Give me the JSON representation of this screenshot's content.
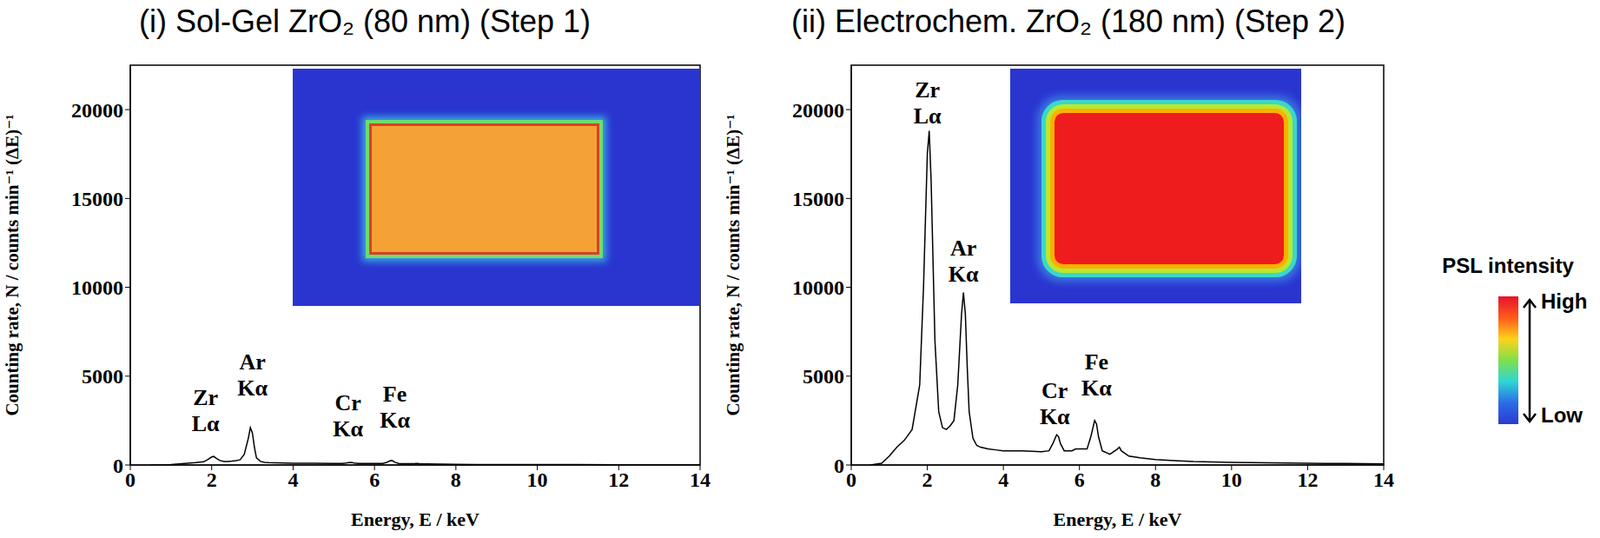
{
  "chart_data": [
    {
      "type": "line",
      "title": "(i) Sol-Gel ZrO₂ (80 nm) (Step 1)",
      "x_label": "Energy, E / keV",
      "y_label": "Counting rate, N / counts min⁻¹ (ΔE)⁻¹",
      "x": [
        0.5,
        0.8,
        1.0,
        1.2,
        1.4,
        1.6,
        1.8,
        1.9,
        2.0,
        2.05,
        2.1,
        2.2,
        2.3,
        2.4,
        2.5,
        2.6,
        2.7,
        2.8,
        2.9,
        2.95,
        3.0,
        3.05,
        3.1,
        3.2,
        3.3,
        3.4,
        3.6,
        3.8,
        4.0,
        4.5,
        5.0,
        5.2,
        5.3,
        5.4,
        5.45,
        5.5,
        5.6,
        5.8,
        5.9,
        6.0,
        6.2,
        6.3,
        6.4,
        6.45,
        6.5,
        6.6,
        6.8,
        7.0,
        7.05,
        7.1,
        7.3,
        7.6,
        8.0,
        8.5,
        9.0,
        10,
        11,
        12,
        13,
        14
      ],
      "values": [
        0,
        0,
        20,
        60,
        100,
        130,
        180,
        300,
        450,
        480,
        400,
        250,
        200,
        200,
        220,
        250,
        300,
        600,
        1500,
        2100,
        1800,
        1000,
        400,
        200,
        150,
        130,
        120,
        110,
        100,
        100,
        90,
        90,
        110,
        150,
        140,
        110,
        90,
        80,
        90,
        90,
        90,
        150,
        250,
        230,
        150,
        90,
        70,
        80,
        90,
        70,
        60,
        50,
        40,
        30,
        30,
        20,
        20,
        10,
        10,
        10
      ],
      "color": "#000000",
      "xlim": [
        0,
        14
      ],
      "xticks": [
        0,
        2,
        4,
        6,
        8,
        10,
        12,
        14
      ],
      "ylim": [
        0,
        22500
      ],
      "yticks": [
        0,
        5000,
        10000,
        15000,
        20000
      ],
      "grid": false,
      "annotations": [
        {
          "text": "Zr Lα",
          "x": 1.85,
          "y": 1900
        },
        {
          "text": "Ar Kα",
          "x": 3.0,
          "y": 3900
        },
        {
          "text": "Cr Kα",
          "x": 5.35,
          "y": 1600
        },
        {
          "text": "Fe Kα",
          "x": 6.5,
          "y": 2100
        }
      ]
    },
    {
      "type": "line",
      "title": "(ii) Electrochem. ZrO₂ (180 nm) (Step 2)",
      "x_label": "Energy, E / keV",
      "y_label": "Counting rate, N / counts min⁻¹ (ΔE)⁻¹",
      "x": [
        0.5,
        0.8,
        1.0,
        1.2,
        1.4,
        1.6,
        1.8,
        1.9,
        2.0,
        2.05,
        2.1,
        2.2,
        2.3,
        2.4,
        2.5,
        2.6,
        2.7,
        2.8,
        2.9,
        2.95,
        3.0,
        3.05,
        3.1,
        3.2,
        3.3,
        3.4,
        3.6,
        3.8,
        4.0,
        4.5,
        5.0,
        5.2,
        5.3,
        5.4,
        5.45,
        5.5,
        5.6,
        5.8,
        5.9,
        6.0,
        6.2,
        6.3,
        6.4,
        6.45,
        6.5,
        6.6,
        6.8,
        7.0,
        7.05,
        7.1,
        7.3,
        7.6,
        8.0,
        8.5,
        9.0,
        10,
        11,
        12,
        13,
        14
      ],
      "values": [
        0,
        100,
        500,
        1000,
        1400,
        2000,
        4500,
        10000,
        17500,
        18800,
        16000,
        7000,
        3000,
        2100,
        2000,
        2200,
        2500,
        4500,
        8500,
        9700,
        8500,
        5500,
        3000,
        1500,
        1100,
        1000,
        900,
        850,
        800,
        800,
        750,
        800,
        1200,
        1700,
        1600,
        1200,
        800,
        800,
        900,
        900,
        900,
        1600,
        2500,
        2300,
        1600,
        800,
        600,
        900,
        1000,
        800,
        500,
        400,
        300,
        250,
        200,
        150,
        120,
        100,
        80,
        60
      ],
      "color": "#000000",
      "xlim": [
        0,
        14
      ],
      "xticks": [
        0,
        2,
        4,
        6,
        8,
        10,
        12,
        14
      ],
      "ylim": [
        0,
        22500
      ],
      "yticks": [
        0,
        5000,
        10000,
        15000,
        20000
      ],
      "grid": false,
      "annotations": [
        {
          "text": "Zr Lα",
          "x": 2.0,
          "y": 19200
        },
        {
          "text": "Ar Kα",
          "x": 2.95,
          "y": 10300
        },
        {
          "text": "Cr Kα",
          "x": 5.35,
          "y": 2300
        },
        {
          "text": "Fe Kα",
          "x": 6.45,
          "y": 3900
        }
      ]
    }
  ],
  "color_bar": {
    "title": "PSL intensity",
    "high": "High",
    "low": "Low"
  }
}
